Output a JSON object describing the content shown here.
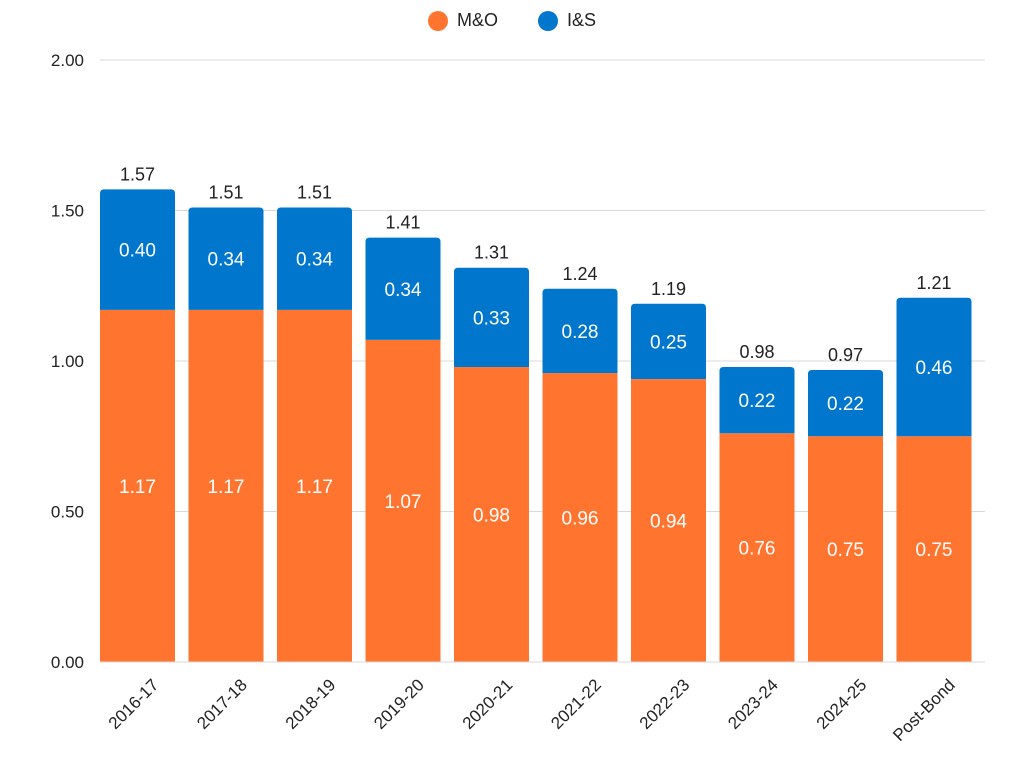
{
  "legend": {
    "items": [
      {
        "label": "M&O",
        "color": "#FF7530"
      },
      {
        "label": "I&S",
        "color": "#0077CC"
      }
    ]
  },
  "chart_data": {
    "type": "bar",
    "stacked": true,
    "categories": [
      "2016-17",
      "2017-18",
      "2018-19",
      "2019-20",
      "2020-21",
      "2021-22",
      "2022-23",
      "2023-24",
      "2024-25",
      "Post-Bond"
    ],
    "series": [
      {
        "name": "M&O",
        "color": "#FF7530",
        "values": [
          1.17,
          1.17,
          1.17,
          1.07,
          0.98,
          0.96,
          0.94,
          0.76,
          0.75,
          0.75
        ],
        "labels": [
          "1.17",
          "1.17",
          "1.17",
          "1.07",
          "0.98",
          "0.96",
          "0.94",
          "0.76",
          "0.75",
          "0.75"
        ]
      },
      {
        "name": "I&S",
        "color": "#0077CC",
        "values": [
          0.4,
          0.34,
          0.34,
          0.34,
          0.33,
          0.28,
          0.25,
          0.22,
          0.22,
          0.46
        ],
        "labels": [
          "0.40",
          "0.34",
          "0.34",
          "0.34",
          "0.33",
          "0.28",
          "0.25",
          "0.22",
          "0.22",
          "0.46"
        ]
      }
    ],
    "totals": [
      1.57,
      1.51,
      1.51,
      1.41,
      1.31,
      1.24,
      1.19,
      0.98,
      0.97,
      1.21
    ],
    "total_labels": [
      "1.57",
      "1.51",
      "1.51",
      "1.41",
      "1.31",
      "1.24",
      "1.19",
      "0.98",
      "0.97",
      "1.21"
    ],
    "yticks": [
      "0.00",
      "0.50",
      "1.00",
      "1.50",
      "2.00"
    ],
    "ylim": [
      0,
      2.0
    ],
    "grid": true,
    "legend_position": "top-center",
    "title": "",
    "xlabel": "",
    "ylabel": ""
  }
}
